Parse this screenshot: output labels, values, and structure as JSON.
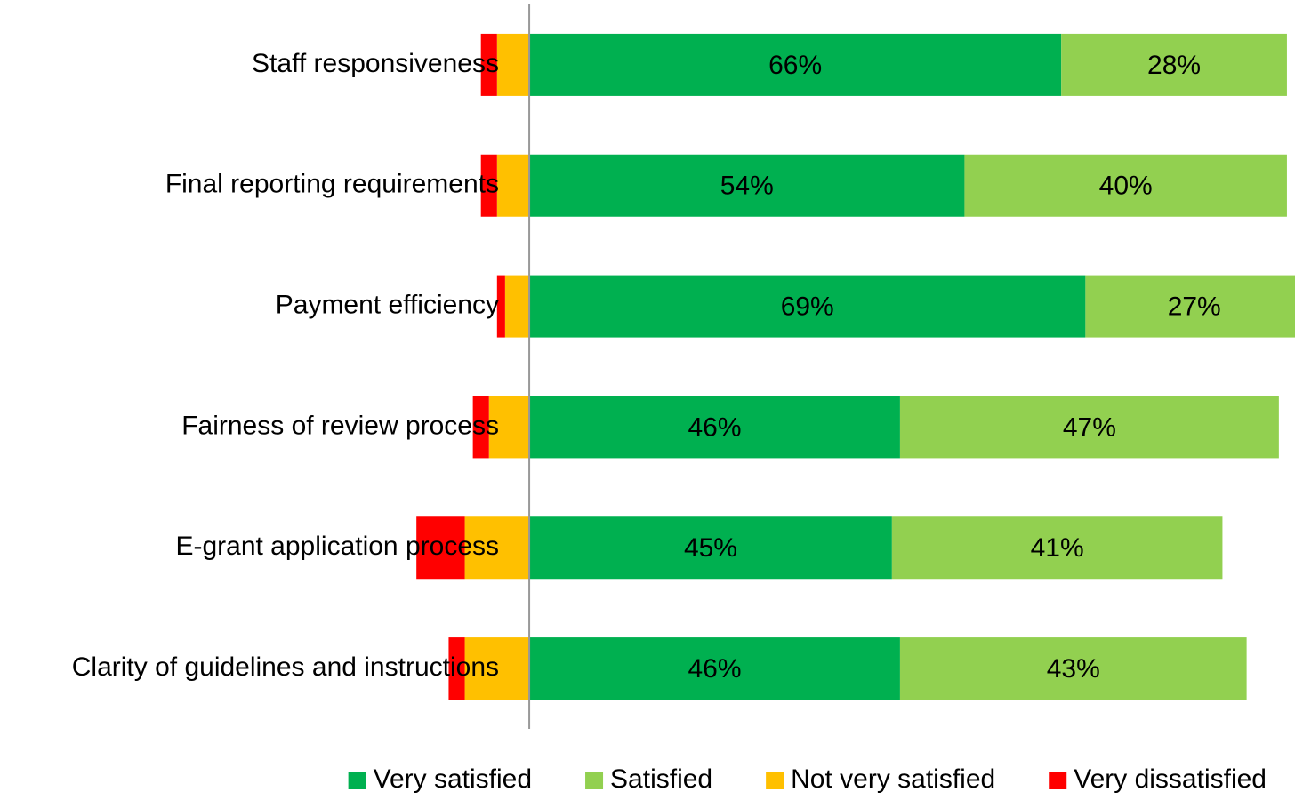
{
  "chart_data": {
    "type": "diverging-stacked-barh",
    "categories": [
      "Staff responsiveness",
      "Final reporting requirements",
      "Payment efficiency",
      "Fairness of review process",
      "E-grant application process",
      "Clarity of guidelines and instructions"
    ],
    "series": [
      {
        "name": "Very satisfied",
        "color": "#00b050",
        "values": [
          66,
          54,
          69,
          46,
          45,
          46
        ],
        "value_labels": [
          "66%",
          "54%",
          "69%",
          "46%",
          "45%",
          "46%"
        ]
      },
      {
        "name": "Satisfied",
        "color": "#92d050",
        "values": [
          28,
          40,
          27,
          47,
          41,
          43
        ],
        "value_labels": [
          "28%",
          "40%",
          "27%",
          "47%",
          "41%",
          "43%"
        ]
      },
      {
        "name": "Not very satisfied",
        "color": "#ffc000",
        "values": [
          -4,
          -4,
          -3,
          -5,
          -8,
          -8
        ]
      },
      {
        "name": "Very dissatisfied",
        "color": "#ff0000",
        "values": [
          -2,
          -2,
          -1,
          -2,
          -6,
          -2
        ]
      }
    ],
    "xlim": [
      -65,
      95
    ],
    "legend": "bottom"
  }
}
